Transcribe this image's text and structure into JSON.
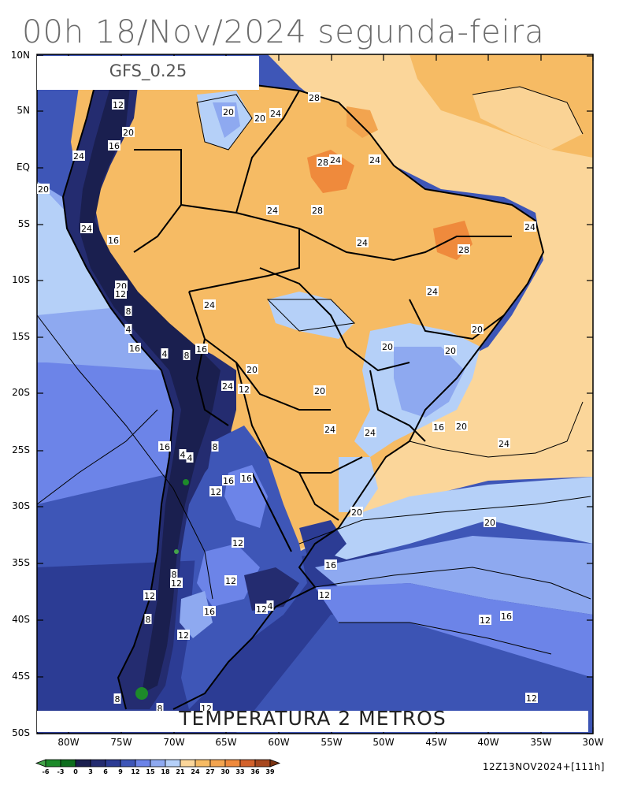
{
  "title": "00h 18/Nov/2024 segunda-feira",
  "model": "GFS_0.25",
  "product": "TEMPERATURA 2 METROS",
  "init_label": "12Z13NOV2024+[111h]",
  "lat_labels": [
    "10N",
    "5N",
    "EQ",
    "5S",
    "10S",
    "15S",
    "20S",
    "25S",
    "30S",
    "35S",
    "40S",
    "45S",
    "50S"
  ],
  "lon_labels": [
    "80W",
    "75W",
    "70W",
    "65W",
    "60W",
    "55W",
    "50W",
    "45W",
    "40W",
    "35W",
    "30W"
  ],
  "colorbar": {
    "labels": [
      "-6",
      "-3",
      "0",
      "3",
      "6",
      "9",
      "12",
      "15",
      "18",
      "21",
      "24",
      "27",
      "30",
      "33",
      "36",
      "39"
    ],
    "colors": [
      "#44a34a",
      "#1d8a2a",
      "#0e6e1e",
      "#1a1f4f",
      "#242c70",
      "#2c3c94",
      "#3e56b7",
      "#6c84e8",
      "#8ea9f0",
      "#b5d0f8",
      "#fbd69a",
      "#f6bb64",
      "#f2a44f",
      "#ef8a3c",
      "#d2622c",
      "#a7481f",
      "#7a3312"
    ]
  },
  "contour_labels": [
    "12",
    "20",
    "20",
    "24",
    "28",
    "20",
    "16",
    "24",
    "28",
    "24",
    "24",
    "20",
    "24",
    "28",
    "24",
    "16",
    "24",
    "28",
    "24",
    "24",
    "20",
    "12",
    "8",
    "24",
    "20",
    "4",
    "20",
    "16",
    "4",
    "8",
    "16",
    "20",
    "20",
    "24",
    "12",
    "20",
    "24",
    "24",
    "16",
    "20",
    "16",
    "4",
    "4",
    "8",
    "24",
    "16",
    "16",
    "12",
    "20",
    "20",
    "12",
    "16",
    "12",
    "12",
    "8",
    "12",
    "12",
    "8",
    "16",
    "12",
    "12",
    "16",
    "12",
    "4",
    "12",
    "8",
    "8",
    "12"
  ]
}
